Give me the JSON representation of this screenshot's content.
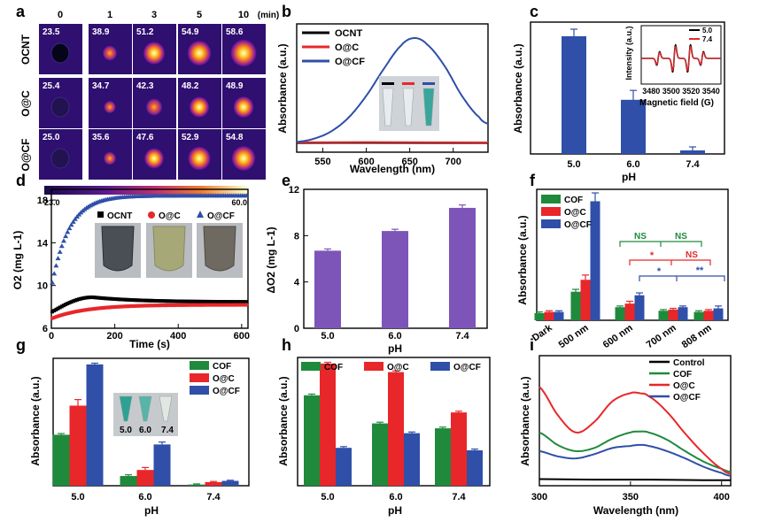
{
  "panel_letters": [
    "a",
    "b",
    "c",
    "d",
    "e",
    "f",
    "g",
    "h",
    "i"
  ],
  "colors": {
    "black": "#000000",
    "red": "#e8272a",
    "blue": "#2f4fa8",
    "green": "#1f8a3c",
    "purple": "#7d55b8"
  },
  "panel_a": {
    "time_labels": [
      "0",
      "1",
      "3",
      "5",
      "10"
    ],
    "unit": "(min)",
    "rows": [
      {
        "name": "OCNT",
        "temps": [
          "23.5",
          "38.9",
          "51.2",
          "54.9",
          "58.6"
        ]
      },
      {
        "name": "O@C",
        "temps": [
          "25.4",
          "34.7",
          "42.3",
          "48.2",
          "48.9"
        ]
      },
      {
        "name": "O@CF",
        "temps": [
          "25.0",
          "35.6",
          "47.6",
          "52.9",
          "54.8"
        ]
      }
    ],
    "scale_min": "23.0",
    "scale_max": "60.0"
  },
  "chart_data": [
    {
      "panel": "b",
      "type": "line",
      "xlabel": "Wavelength (nm)",
      "ylabel": "Absorbance (a.u.)",
      "xlim": [
        520,
        740
      ],
      "xticks": [
        "550",
        "600",
        "650",
        "700"
      ],
      "legend": [
        "OCNT",
        "O@C",
        "O@CF"
      ],
      "series": [
        {
          "name": "OCNT",
          "x": [
            520,
            600,
            680,
            740
          ],
          "y": [
            0.02,
            0.021,
            0.02,
            0.02
          ]
        },
        {
          "name": "O@C",
          "x": [
            520,
            600,
            680,
            740
          ],
          "y": [
            0.026,
            0.028,
            0.026,
            0.025
          ]
        },
        {
          "name": "O@CF",
          "peak_x": 655,
          "peak_y": 1.0,
          "x": [
            520,
            540,
            560,
            580,
            600,
            620,
            640,
            655,
            670,
            690,
            710,
            730,
            740
          ],
          "y": [
            0.03,
            0.06,
            0.13,
            0.26,
            0.46,
            0.71,
            0.93,
            1.0,
            0.94,
            0.74,
            0.46,
            0.26,
            0.2
          ]
        }
      ]
    },
    {
      "panel": "c",
      "type": "bar",
      "xlabel": "pH",
      "ylabel": "Absorbance (a.u.)",
      "categories": [
        "5.0",
        "6.0",
        "7.4"
      ],
      "values": [
        1.0,
        0.46,
        0.03
      ],
      "errors": [
        0.06,
        0.08,
        0.03
      ],
      "ylim": [
        0,
        1.12
      ],
      "inset": {
        "type": "line",
        "xlabel": "Magnetic field (G)",
        "ylabel": "Intensity (a.u.)",
        "xticks": [
          "3480",
          "3500",
          "3520",
          "3540"
        ],
        "xlim": [
          3470,
          3550
        ],
        "legend": [
          "5.0",
          "7.4"
        ],
        "peaks": [
          3487,
          3503,
          3518,
          3531
        ],
        "amplitudes": [
          1.0,
          2.0,
          2.0,
          1.0
        ],
        "scale": [
          1.0,
          0.9
        ]
      }
    },
    {
      "panel": "d",
      "type": "scatter",
      "xlabel": "Time (s)",
      "ylabel": "O2 (mg L-1)",
      "xlim": [
        0,
        620
      ],
      "ylim": [
        6,
        19
      ],
      "xticks": [
        "0",
        "200",
        "400",
        "600"
      ],
      "yticks": [
        "6",
        "10",
        "14",
        "18"
      ],
      "legend": [
        "OCNT",
        "O@C",
        "O@CF"
      ],
      "series": [
        {
          "name": "OCNT",
          "y0": 7.5,
          "ypeak": 8.9,
          "tpeak": 130,
          "yend": 8.45
        },
        {
          "name": "O@C",
          "y0": 6.9,
          "yend": 8.2,
          "tau": 110
        },
        {
          "name": "O@CF",
          "y0": 9.8,
          "yend": 18.4,
          "tau": 55
        }
      ]
    },
    {
      "panel": "e",
      "type": "bar",
      "xlabel": "pH",
      "ylabel": "ΔO2 (mg L-1)",
      "categories": [
        "5.0",
        "6.0",
        "7.4"
      ],
      "values": [
        6.7,
        8.4,
        10.4
      ],
      "errors": [
        0.15,
        0.15,
        0.25
      ],
      "ylim": [
        0,
        12
      ],
      "yticks": [
        "0",
        "4",
        "8",
        "12"
      ]
    },
    {
      "panel": "f",
      "type": "bar",
      "ylabel": "Absorbance (a.u.)",
      "categories": [
        "Dark",
        "500 nm",
        "600 nm",
        "700 nm",
        "808 nm"
      ],
      "series": [
        {
          "name": "COF",
          "values": [
            0.06,
            0.24,
            0.11,
            0.08,
            0.07
          ],
          "errors": [
            0.01,
            0.02,
            0.01,
            0.01,
            0.01
          ]
        },
        {
          "name": "O@C",
          "values": [
            0.07,
            0.34,
            0.14,
            0.09,
            0.08
          ],
          "errors": [
            0.01,
            0.04,
            0.02,
            0.01,
            0.01
          ]
        },
        {
          "name": "O@CF",
          "values": [
            0.07,
            1.0,
            0.21,
            0.11,
            0.1
          ],
          "errors": [
            0.01,
            0.07,
            0.02,
            0.01,
            0.02
          ]
        }
      ],
      "ylim": [
        0,
        1.1
      ],
      "significance": [
        "NS",
        "NS",
        "*",
        "NS",
        "*",
        "**"
      ]
    },
    {
      "panel": "g",
      "type": "bar",
      "xlabel": "pH",
      "ylabel": "Absorbance (a.u.)",
      "categories": [
        "5.0",
        "6.0",
        "7.4"
      ],
      "series": [
        {
          "name": "COF",
          "values": [
            0.42,
            0.08,
            0.01
          ],
          "errors": [
            0.01,
            0.01,
            0.005
          ]
        },
        {
          "name": "O@C",
          "values": [
            0.66,
            0.13,
            0.03
          ],
          "errors": [
            0.05,
            0.02,
            0.005
          ]
        },
        {
          "name": "O@CF",
          "values": [
            1.0,
            0.34,
            0.04
          ],
          "errors": [
            0.01,
            0.02,
            0.005
          ]
        }
      ],
      "ylim": [
        0,
        1.05
      ],
      "inset_labels": [
        "5.0",
        "6.0",
        "7.4"
      ]
    },
    {
      "panel": "h",
      "type": "bar",
      "xlabel": "pH",
      "ylabel": "Absorbance (a.u.)",
      "categories": [
        "5.0",
        "6.0",
        "7.4"
      ],
      "series": [
        {
          "name": "COF",
          "values": [
            0.74,
            0.51,
            0.47
          ],
          "errors": [
            0.01,
            0.01,
            0.01
          ]
        },
        {
          "name": "O@C",
          "values": [
            1.0,
            0.93,
            0.6
          ],
          "errors": [
            0.01,
            0.01,
            0.01
          ]
        },
        {
          "name": "O@CF",
          "values": [
            0.31,
            0.43,
            0.29
          ],
          "errors": [
            0.01,
            0.01,
            0.01
          ]
        }
      ],
      "ylim": [
        0,
        1.05
      ]
    },
    {
      "panel": "i",
      "type": "line",
      "xlabel": "Wavelength (nm)",
      "ylabel": "Absorbance (a.u.)",
      "xlim": [
        300,
        405
      ],
      "xticks": [
        "300",
        "350",
        "400"
      ],
      "legend": [
        "Control",
        "COF",
        "O@C",
        "O@CF"
      ],
      "series": [
        {
          "name": "Control",
          "x": [
            300,
            330,
            360,
            390,
            405
          ],
          "y": [
            0.03,
            0.025,
            0.025,
            0.02,
            0.02
          ]
        },
        {
          "name": "COF",
          "x": [
            300,
            310,
            320,
            330,
            340,
            350,
            355,
            360,
            370,
            380,
            390,
            400,
            405
          ],
          "y": [
            0.48,
            0.36,
            0.3,
            0.33,
            0.42,
            0.48,
            0.49,
            0.48,
            0.41,
            0.3,
            0.2,
            0.13,
            0.1
          ]
        },
        {
          "name": "O@C",
          "x": [
            300,
            310,
            320,
            330,
            340,
            350,
            355,
            360,
            370,
            380,
            390,
            400,
            405
          ],
          "y": [
            0.92,
            0.65,
            0.48,
            0.58,
            0.78,
            0.86,
            0.86,
            0.83,
            0.68,
            0.47,
            0.28,
            0.13,
            0.08
          ]
        },
        {
          "name": "O@CF",
          "x": [
            300,
            310,
            320,
            330,
            340,
            350,
            355,
            360,
            370,
            380,
            390,
            400,
            405
          ],
          "y": [
            0.3,
            0.25,
            0.23,
            0.27,
            0.33,
            0.35,
            0.36,
            0.35,
            0.3,
            0.23,
            0.15,
            0.09,
            0.06
          ]
        }
      ]
    }
  ]
}
